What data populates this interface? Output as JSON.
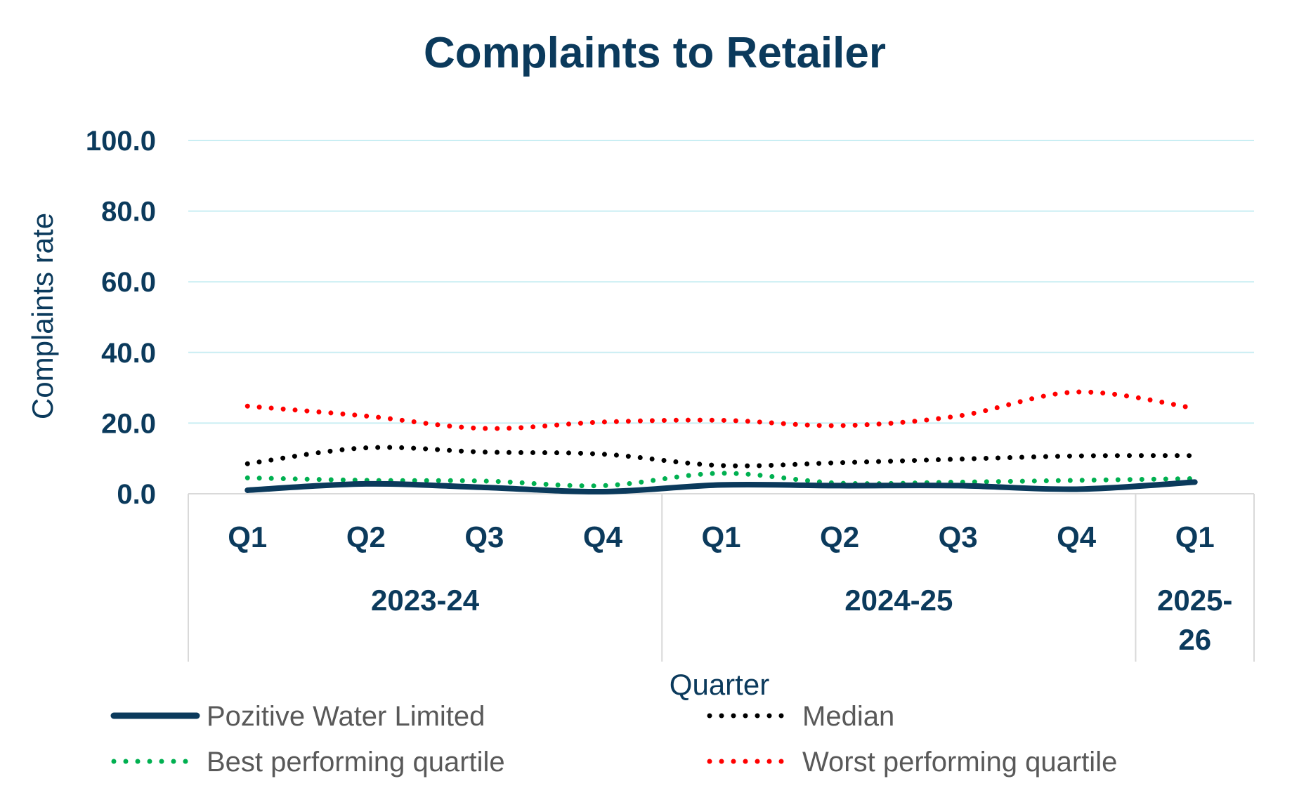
{
  "chart_data": {
    "type": "line",
    "title": "Complaints to Retailer",
    "xlabel": "Quarter",
    "ylabel": "Complaints rate",
    "ylim": [
      0,
      100
    ],
    "yticks": [
      0,
      20,
      40,
      60,
      80,
      100
    ],
    "ytick_labels": [
      "0.0",
      "20.0",
      "40.0",
      "60.0",
      "80.0",
      "100.0"
    ],
    "grid": true,
    "legend_position": "bottom",
    "categories": [
      "Q1",
      "Q2",
      "Q3",
      "Q4",
      "Q1",
      "Q2",
      "Q3",
      "Q4",
      "Q1"
    ],
    "groups": [
      {
        "label": "2023-24",
        "start": 0,
        "end": 3
      },
      {
        "label": "2024-25",
        "start": 4,
        "end": 7
      },
      {
        "label": "2025-26",
        "start": 8,
        "end": 8,
        "label_lines": [
          "2025-",
          "26"
        ]
      }
    ],
    "series": [
      {
        "name": "Median",
        "color": "#000000",
        "style": "dotted",
        "values": [
          8.5,
          13.0,
          11.8,
          11.2,
          8.0,
          8.8,
          9.8,
          10.7,
          10.8
        ]
      },
      {
        "name": "Best performing quartile",
        "color": "#00b050",
        "style": "dotted",
        "values": [
          4.5,
          3.8,
          3.6,
          2.3,
          5.8,
          3.0,
          3.3,
          3.8,
          4.3
        ]
      },
      {
        "name": "Worst performing quartile",
        "color": "#ff0000",
        "style": "dotted",
        "values": [
          24.8,
          22.0,
          18.5,
          20.3,
          20.8,
          19.3,
          22.0,
          28.8,
          24.2
        ]
      },
      {
        "name": "Pozitive Water Limited",
        "color": "#0b3a5c",
        "style": "solid",
        "values": [
          1.0,
          2.8,
          1.8,
          0.6,
          2.5,
          2.3,
          2.3,
          1.3,
          3.3
        ]
      }
    ],
    "legend": [
      {
        "name": "Pozitive Water Limited",
        "color": "#0b3a5c",
        "style": "solid"
      },
      {
        "name": "Median",
        "color": "#000000",
        "style": "dotted"
      },
      {
        "name": "Best performing quartile",
        "color": "#00b050",
        "style": "dotted"
      },
      {
        "name": "Worst performing quartile",
        "color": "#ff0000",
        "style": "dotted"
      }
    ]
  },
  "colors": {
    "title": "#0b3a5c",
    "axis_text": "#0b3a5c",
    "grid": "#c9eef3",
    "axis_line": "#d9d9d9",
    "legend_text": "#595959"
  }
}
